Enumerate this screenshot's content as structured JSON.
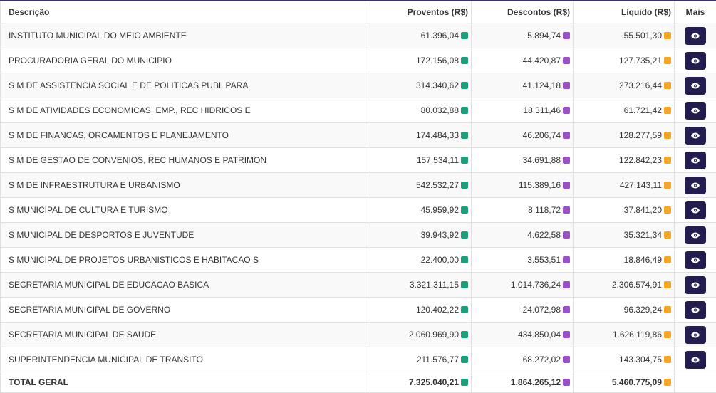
{
  "table": {
    "headers": [
      "Descrição",
      "Proventos (R$)",
      "Descontos (R$)",
      "Líquido (R$)",
      "Mais"
    ],
    "rows": [
      [
        "INSTITUTO MUNICIPAL DO MEIO AMBIENTE",
        "61.396,04",
        "5.894,74",
        "55.501,30"
      ],
      [
        "PROCURADORIA GERAL DO MUNICIPIO",
        "172.156,08",
        "44.420,87",
        "127.735,21"
      ],
      [
        "S M DE ASSISTENCIA SOCIAL E DE POLITICAS PUBL PARA",
        "314.340,62",
        "41.124,18",
        "273.216,44"
      ],
      [
        "S M DE ATIVIDADES ECONOMICAS, EMP., REC HIDRICOS E",
        "80.032,88",
        "18.311,46",
        "61.721,42"
      ],
      [
        "S M DE FINANCAS, ORCAMENTOS E PLANEJAMENTO",
        "174.484,33",
        "46.206,74",
        "128.277,59"
      ],
      [
        "S M DE GESTAO DE CONVENIOS, REC HUMANOS E PATRIMON",
        "157.534,11",
        "34.691,88",
        "122.842,23"
      ],
      [
        "S M DE INFRAESTRUTURA E URBANISMO",
        "542.532,27",
        "115.389,16",
        "427.143,11"
      ],
      [
        "S MUNICIPAL DE CULTURA E TURISMO",
        "45.959,92",
        "8.118,72",
        "37.841,20"
      ],
      [
        "S MUNICIPAL DE DESPORTOS E JUVENTUDE",
        "39.943,92",
        "4.622,58",
        "35.321,34"
      ],
      [
        "S MUNICIPAL DE PROJETOS URBANISTICOS E HABITACAO S",
        "22.400,00",
        "3.553,51",
        "18.846,49"
      ],
      [
        "SECRETARIA MUNICIPAL DE EDUCACAO BASICA",
        "3.321.311,15",
        "1.014.736,24",
        "2.306.574,91"
      ],
      [
        "SECRETARIA MUNICIPAL DE GOVERNO",
        "120.402,22",
        "24.072,98",
        "96.329,24"
      ],
      [
        "SECRETARIA MUNICIPAL DE SAUDE",
        "2.060.969,90",
        "434.850,04",
        "1.626.119,86"
      ],
      [
        "SUPERINTENDENCIA MUNICIPAL DE TRANSITO",
        "211.576,77",
        "68.272,02",
        "143.304,75"
      ]
    ],
    "total": [
      "TOTAL GERAL",
      "7.325.040,21",
      "1.864.265,12",
      "5.460.775,09"
    ]
  }
}
